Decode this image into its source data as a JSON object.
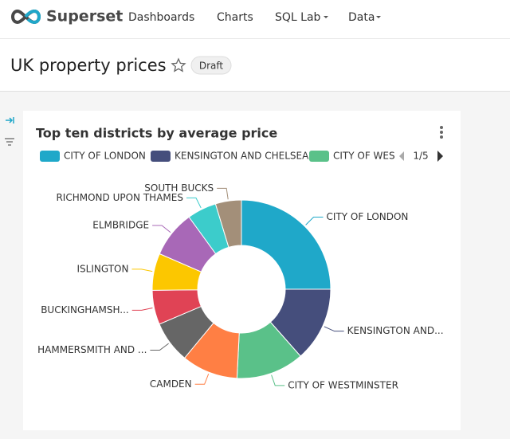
{
  "nav": {
    "brand": "Superset",
    "items": [
      "Dashboards",
      "Charts",
      "SQL Lab",
      "Data"
    ]
  },
  "header": {
    "title": "UK property prices",
    "badge": "Draft"
  },
  "chart_data": {
    "type": "pie",
    "title": "Top ten districts by average price",
    "categories": [
      "CITY OF LONDON",
      "KENSINGTON AND...",
      "CITY OF WESTMINSTER",
      "CAMDEN",
      "HAMMERSMITH AND ...",
      "BUCKINGHAMSH...",
      "ISLINGTON",
      "ELMBRIDGE",
      "RICHMOND UPON THAMES",
      "SOUTH BUCKS"
    ],
    "values": [
      25,
      13.5,
      12.3,
      10.2,
      7.6,
      6.2,
      6.7,
      8.5,
      5.3,
      4.7
    ],
    "colors": [
      "#1FA8C9",
      "#454E7C",
      "#5AC189",
      "#FF7F44",
      "#666666",
      "#E04355",
      "#FCC700",
      "#A868B7",
      "#3CCCCB",
      "#A38F79"
    ],
    "legend_items": [
      "CITY OF LONDON",
      "KENSINGTON AND CHELSEA",
      "CITY OF WES"
    ],
    "legend_page": "1/5"
  }
}
